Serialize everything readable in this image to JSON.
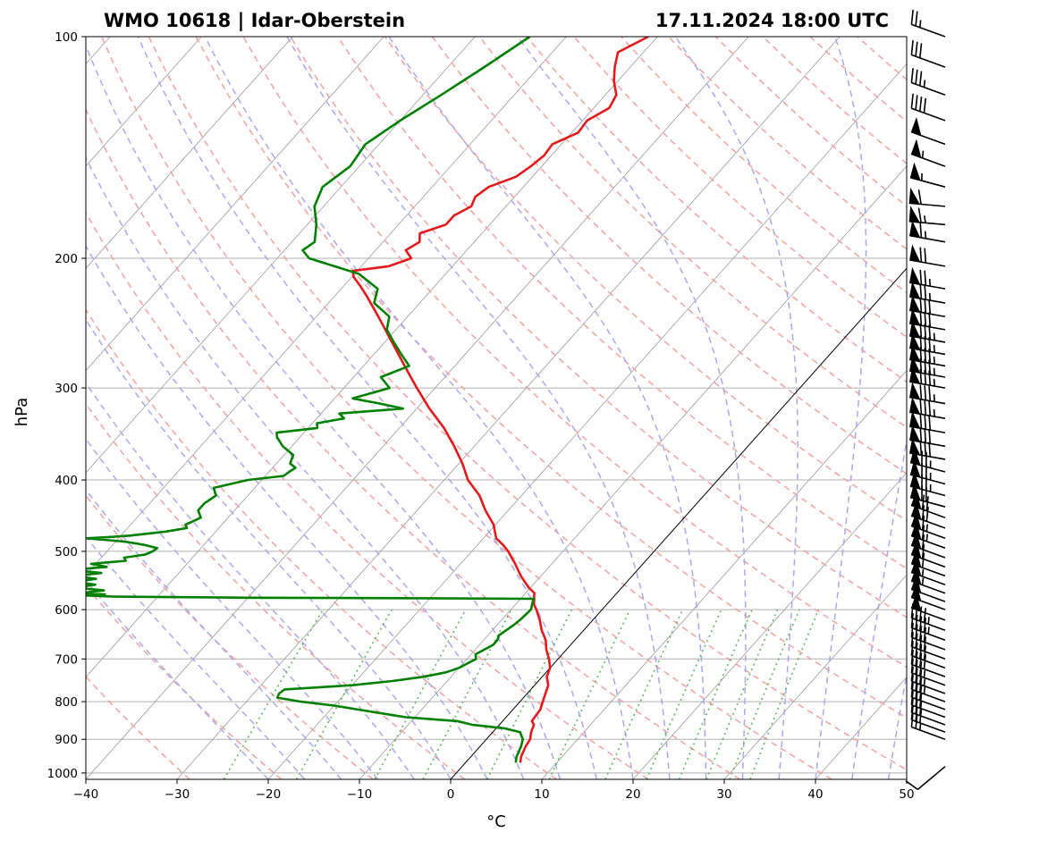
{
  "header": {
    "title_left": "WMO 10618 | Idar-Oberstein",
    "title_right": "17.11.2024 18:00 UTC"
  },
  "chart_data": {
    "type": "line",
    "diagram": "skew-t log-p",
    "xlabel": "°C",
    "ylabel": "hPa",
    "xlim": [
      -40,
      50
    ],
    "ylim": [
      1020,
      100
    ],
    "y_scale": "log",
    "grid": true,
    "x_ticks": [
      -40,
      -30,
      -20,
      -10,
      0,
      10,
      20,
      30,
      40,
      50
    ],
    "x_tick_labels": [
      "−40",
      "−30",
      "−20",
      "−10",
      "0",
      "10",
      "20",
      "30",
      "40",
      "50"
    ],
    "y_ticks": [
      1000,
      900,
      800,
      700,
      600,
      500,
      400,
      300,
      200,
      100
    ],
    "y_tick_labels": [
      "1000",
      "900",
      "800",
      "700",
      "600",
      "500",
      "400",
      "300",
      "200",
      "100"
    ],
    "colors": {
      "temperature": "#e31a1c",
      "dewpoint": "#008000",
      "dry_adiabats": "#f4a0a0",
      "moist_adiabats": "#a8a8f0",
      "mixing_ratio": "#5cb85c",
      "isotherms": "#9a9a9a",
      "zero_isotherm": "#000000"
    },
    "series": [
      {
        "key": "temperature",
        "pressure": [
          968,
          950,
          920,
          900,
          880,
          860,
          850,
          820,
          800,
          780,
          760,
          740,
          720,
          700,
          680,
          660,
          640,
          620,
          600,
          590,
          580,
          575,
          570,
          560,
          550,
          540,
          530,
          520,
          510,
          500,
          490,
          480,
          460,
          440,
          420,
          400,
          380,
          360,
          340,
          320,
          300,
          280,
          260,
          240,
          225,
          218,
          212,
          208,
          205,
          200,
          195,
          190,
          185,
          180,
          175,
          170,
          165,
          160,
          155,
          150,
          145,
          140,
          135,
          130,
          125,
          120,
          115,
          110,
          105,
          100
        ],
        "values": [
          6.0,
          5.5,
          5.0,
          4.8,
          4.2,
          3.8,
          3.2,
          3.0,
          2.5,
          2.0,
          1.5,
          0.5,
          0,
          -1.0,
          -2.2,
          -3.2,
          -4.6,
          -5.8,
          -7.2,
          -8.0,
          -8.5,
          -8.8,
          -9.0,
          -10.2,
          -11.2,
          -12.2,
          -13.1,
          -14.0,
          -15.0,
          -16.0,
          -17.2,
          -18.6,
          -20.2,
          -22.5,
          -24.6,
          -27.4,
          -29.6,
          -32.2,
          -35.1,
          -38.6,
          -42.0,
          -45.5,
          -49.2,
          -53.2,
          -56.5,
          -58.2,
          -59.8,
          -60.5,
          -57.0,
          -55.3,
          -56.7,
          -56.0,
          -56.8,
          -54.8,
          -54.8,
          -53.8,
          -54.3,
          -53.8,
          -51.8,
          -51.2,
          -50.8,
          -51.0,
          -49.3,
          -49.5,
          -48.3,
          -48.8,
          -50.4,
          -51.7,
          -52.8,
          -51.0
        ]
      },
      {
        "key": "dewpoint",
        "pressure": [
          968,
          950,
          920,
          900,
          880,
          870,
          860,
          850,
          845,
          840,
          830,
          820,
          810,
          800,
          790,
          780,
          770,
          760,
          750,
          740,
          730,
          720,
          710,
          700,
          690,
          680,
          670,
          660,
          650,
          640,
          630,
          620,
          600,
          590,
          580,
          579,
          578,
          576,
          574,
          572,
          570,
          565,
          560,
          555,
          550,
          545,
          540,
          535,
          530,
          525,
          520,
          515,
          510,
          505,
          500,
          495,
          490,
          485,
          480,
          478,
          476,
          470,
          465,
          460,
          450,
          440,
          430,
          420,
          410,
          400,
          395,
          390,
          385,
          380,
          370,
          360,
          350,
          345,
          340,
          335,
          330,
          325,
          320,
          315,
          310,
          300,
          290,
          280,
          270,
          260,
          250,
          240,
          230,
          220,
          210,
          200,
          195,
          190,
          180,
          170,
          160,
          150,
          140,
          130,
          120,
          110,
          100
        ],
        "values": [
          5.5,
          5.0,
          4.5,
          4.0,
          3.0,
          1.0,
          -3.0,
          -5.0,
          -8.0,
          -11.0,
          -14.0,
          -17.0,
          -20.0,
          -24.0,
          -27.0,
          -27.2,
          -27.0,
          -20.0,
          -16.0,
          -13.0,
          -11.0,
          -10.0,
          -9.5,
          -9.0,
          -9.5,
          -9.0,
          -8.5,
          -8.5,
          -8.8,
          -8.5,
          -8.2,
          -8.0,
          -7.8,
          -8.2,
          -8.6,
          -20.0,
          -40.0,
          -55.0,
          -58.0,
          -56.0,
          -59.0,
          -56.5,
          -60.0,
          -58.0,
          -60.5,
          -58.5,
          -61.0,
          -58.5,
          -62.0,
          -58.5,
          -60.5,
          -57.0,
          -57.5,
          -55.5,
          -55.0,
          -54.8,
          -56.5,
          -59.0,
          -63.5,
          -61.0,
          -59.0,
          -55.5,
          -53.5,
          -54.0,
          -53.0,
          -54.0,
          -54.0,
          -53.5,
          -54.5,
          -51.5,
          -48.0,
          -47.8,
          -47.5,
          -48.5,
          -49.0,
          -51.0,
          -52.5,
          -53.0,
          -49.0,
          -49.5,
          -47.0,
          -48.0,
          -41.5,
          -44.5,
          -48.0,
          -45.0,
          -47.0,
          -45.0,
          -47.0,
          -49.0,
          -51.0,
          -52.0,
          -55.0,
          -56.0,
          -59.5,
          -66.5,
          -68.0,
          -67.5,
          -69.0,
          -71.0,
          -72.0,
          -71.0,
          -71.5,
          -70.0,
          -68.0,
          -66.0,
          -64.0
        ]
      }
    ],
    "wind_barbs": {
      "pressure": [
        980,
        900,
        880,
        860,
        840,
        820,
        800,
        780,
        760,
        740,
        720,
        700,
        680,
        660,
        640,
        620,
        600,
        585,
        570,
        555,
        540,
        525,
        510,
        495,
        480,
        465,
        450,
        435,
        420,
        405,
        390,
        375,
        360,
        345,
        330,
        315,
        300,
        290,
        280,
        270,
        260,
        250,
        240,
        230,
        220,
        205,
        190,
        180,
        170,
        160,
        150,
        140,
        130,
        120,
        110,
        100
      ],
      "speed_kt": [
        10,
        25,
        30,
        30,
        30,
        30,
        35,
        35,
        35,
        40,
        40,
        40,
        40,
        45,
        45,
        50,
        50,
        50,
        55,
        55,
        60,
        60,
        60,
        65,
        65,
        70,
        70,
        70,
        75,
        75,
        75,
        80,
        80,
        80,
        85,
        85,
        85,
        85,
        85,
        85,
        85,
        80,
        80,
        75,
        75,
        70,
        65,
        65,
        60,
        55,
        55,
        50,
        40,
        35,
        30,
        25
      ],
      "direction_deg": [
        230,
        290,
        290,
        290,
        290,
        290,
        290,
        290,
        290,
        290,
        290,
        290,
        290,
        290,
        290,
        290,
        290,
        290,
        290,
        290,
        290,
        290,
        290,
        290,
        290,
        290,
        290,
        285,
        285,
        285,
        285,
        280,
        280,
        280,
        280,
        280,
        280,
        280,
        280,
        280,
        280,
        280,
        280,
        280,
        280,
        280,
        280,
        275,
        275,
        285,
        290,
        290,
        290,
        290,
        290,
        290
      ]
    }
  }
}
